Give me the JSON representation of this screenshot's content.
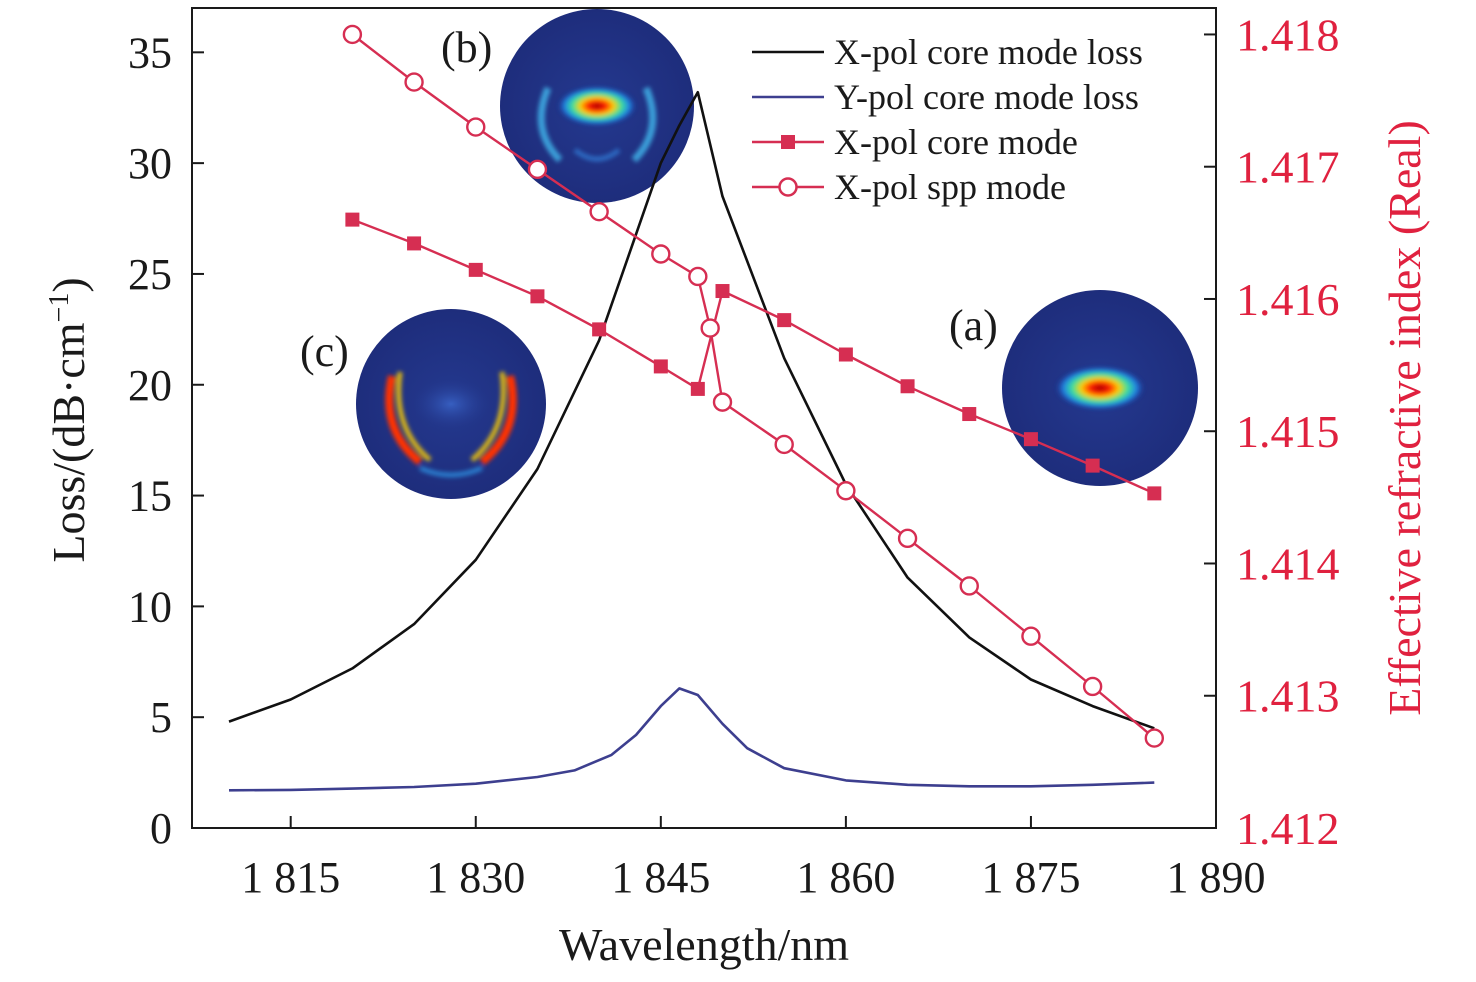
{
  "chart_data": {
    "type": "line",
    "xlabel": "Wavelength/nm",
    "ylabel_left": "Loss/(dB·cm",
    "ylabel_left_sup": "−1",
    "ylabel_left_close": ")",
    "ylabel_right": "Effective refractive index (Real)",
    "xlim": [
      1807,
      1890
    ],
    "ylim_left": [
      0,
      37
    ],
    "ylim_right": [
      1.412,
      1.4182
    ],
    "x_ticks": [
      {
        "value": 1815,
        "label": "1 815"
      },
      {
        "value": 1830,
        "label": "1 830"
      },
      {
        "value": 1845,
        "label": "1 845"
      },
      {
        "value": 1860,
        "label": "1 860"
      },
      {
        "value": 1875,
        "label": "1 875"
      },
      {
        "value": 1890,
        "label": "1 890"
      }
    ],
    "y_left_ticks": [
      {
        "value": 0,
        "label": "0"
      },
      {
        "value": 5,
        "label": "5"
      },
      {
        "value": 10,
        "label": "10"
      },
      {
        "value": 15,
        "label": "15"
      },
      {
        "value": 20,
        "label": "20"
      },
      {
        "value": 25,
        "label": "25"
      },
      {
        "value": 30,
        "label": "30"
      },
      {
        "value": 35,
        "label": "35"
      }
    ],
    "y_right_ticks": [
      {
        "value": 1.412,
        "label": "1.412"
      },
      {
        "value": 1.413,
        "label": "1.413"
      },
      {
        "value": 1.414,
        "label": "1.414"
      },
      {
        "value": 1.415,
        "label": "1.415"
      },
      {
        "value": 1.416,
        "label": "1.416"
      },
      {
        "value": 1.417,
        "label": "1.417"
      },
      {
        "value": 1.418,
        "label": "1.418"
      }
    ],
    "grid": false,
    "legend_position": "top-right",
    "series": [
      {
        "name": "X-pol core mode loss",
        "axis": "left",
        "color": "#111111",
        "marker": "none",
        "points": [
          [
            1810,
            4.8
          ],
          [
            1815,
            5.8
          ],
          [
            1820,
            7.2
          ],
          [
            1825,
            9.2
          ],
          [
            1830,
            12.1
          ],
          [
            1835,
            16.2
          ],
          [
            1840,
            22.0
          ],
          [
            1843,
            26.8
          ],
          [
            1845,
            30.0
          ],
          [
            1846.5,
            31.7
          ],
          [
            1848,
            33.2
          ],
          [
            1850,
            28.5
          ],
          [
            1855,
            21.2
          ],
          [
            1860,
            15.5
          ],
          [
            1865,
            11.3
          ],
          [
            1870,
            8.6
          ],
          [
            1875,
            6.7
          ],
          [
            1880,
            5.5
          ],
          [
            1885,
            4.5
          ]
        ]
      },
      {
        "name": "Y-pol core mode loss",
        "axis": "left",
        "color": "#3d3f8f",
        "marker": "none",
        "points": [
          [
            1810,
            1.7
          ],
          [
            1815,
            1.72
          ],
          [
            1820,
            1.78
          ],
          [
            1825,
            1.85
          ],
          [
            1830,
            2.0
          ],
          [
            1835,
            2.3
          ],
          [
            1838,
            2.6
          ],
          [
            1841,
            3.3
          ],
          [
            1843,
            4.2
          ],
          [
            1845,
            5.5
          ],
          [
            1846.5,
            6.3
          ],
          [
            1848,
            6.0
          ],
          [
            1850,
            4.7
          ],
          [
            1852,
            3.6
          ],
          [
            1855,
            2.7
          ],
          [
            1860,
            2.15
          ],
          [
            1865,
            1.95
          ],
          [
            1870,
            1.88
          ],
          [
            1875,
            1.88
          ],
          [
            1880,
            1.95
          ],
          [
            1885,
            2.05
          ]
        ]
      },
      {
        "name": "X-pol core mode",
        "axis": "right",
        "color": "#d62e52",
        "marker": "square",
        "points": [
          [
            1820,
            1.4166
          ],
          [
            1825,
            1.41642
          ],
          [
            1830,
            1.41622
          ],
          [
            1835,
            1.41602
          ],
          [
            1840,
            1.41577
          ],
          [
            1845,
            1.41549
          ],
          [
            1848,
            1.41532
          ],
          [
            1850,
            1.41606
          ],
          [
            1855,
            1.41584
          ],
          [
            1860,
            1.41558
          ],
          [
            1865,
            1.41534
          ],
          [
            1870,
            1.41513
          ],
          [
            1875,
            1.41494
          ],
          [
            1880,
            1.41474
          ],
          [
            1885,
            1.41453
          ]
        ]
      },
      {
        "name": "X-pol spp mode",
        "axis": "right",
        "color": "#d62e52",
        "marker": "circle",
        "points": [
          [
            1820,
            1.418
          ],
          [
            1825,
            1.41764
          ],
          [
            1830,
            1.4173
          ],
          [
            1835,
            1.41698
          ],
          [
            1840,
            1.41666
          ],
          [
            1845,
            1.41634
          ],
          [
            1848,
            1.41617
          ],
          [
            1849,
            1.41578
          ],
          [
            1850,
            1.41522
          ],
          [
            1855,
            1.4149
          ],
          [
            1860,
            1.41455
          ],
          [
            1865,
            1.41419
          ],
          [
            1870,
            1.41383
          ],
          [
            1875,
            1.41345
          ],
          [
            1880,
            1.41307
          ],
          [
            1885,
            1.41268
          ]
        ]
      }
    ],
    "insets": [
      {
        "label": "(a)",
        "mode": "core-centered"
      },
      {
        "label": "(b)",
        "mode": "coupled"
      },
      {
        "label": "(c)",
        "mode": "spp-edges"
      }
    ]
  }
}
